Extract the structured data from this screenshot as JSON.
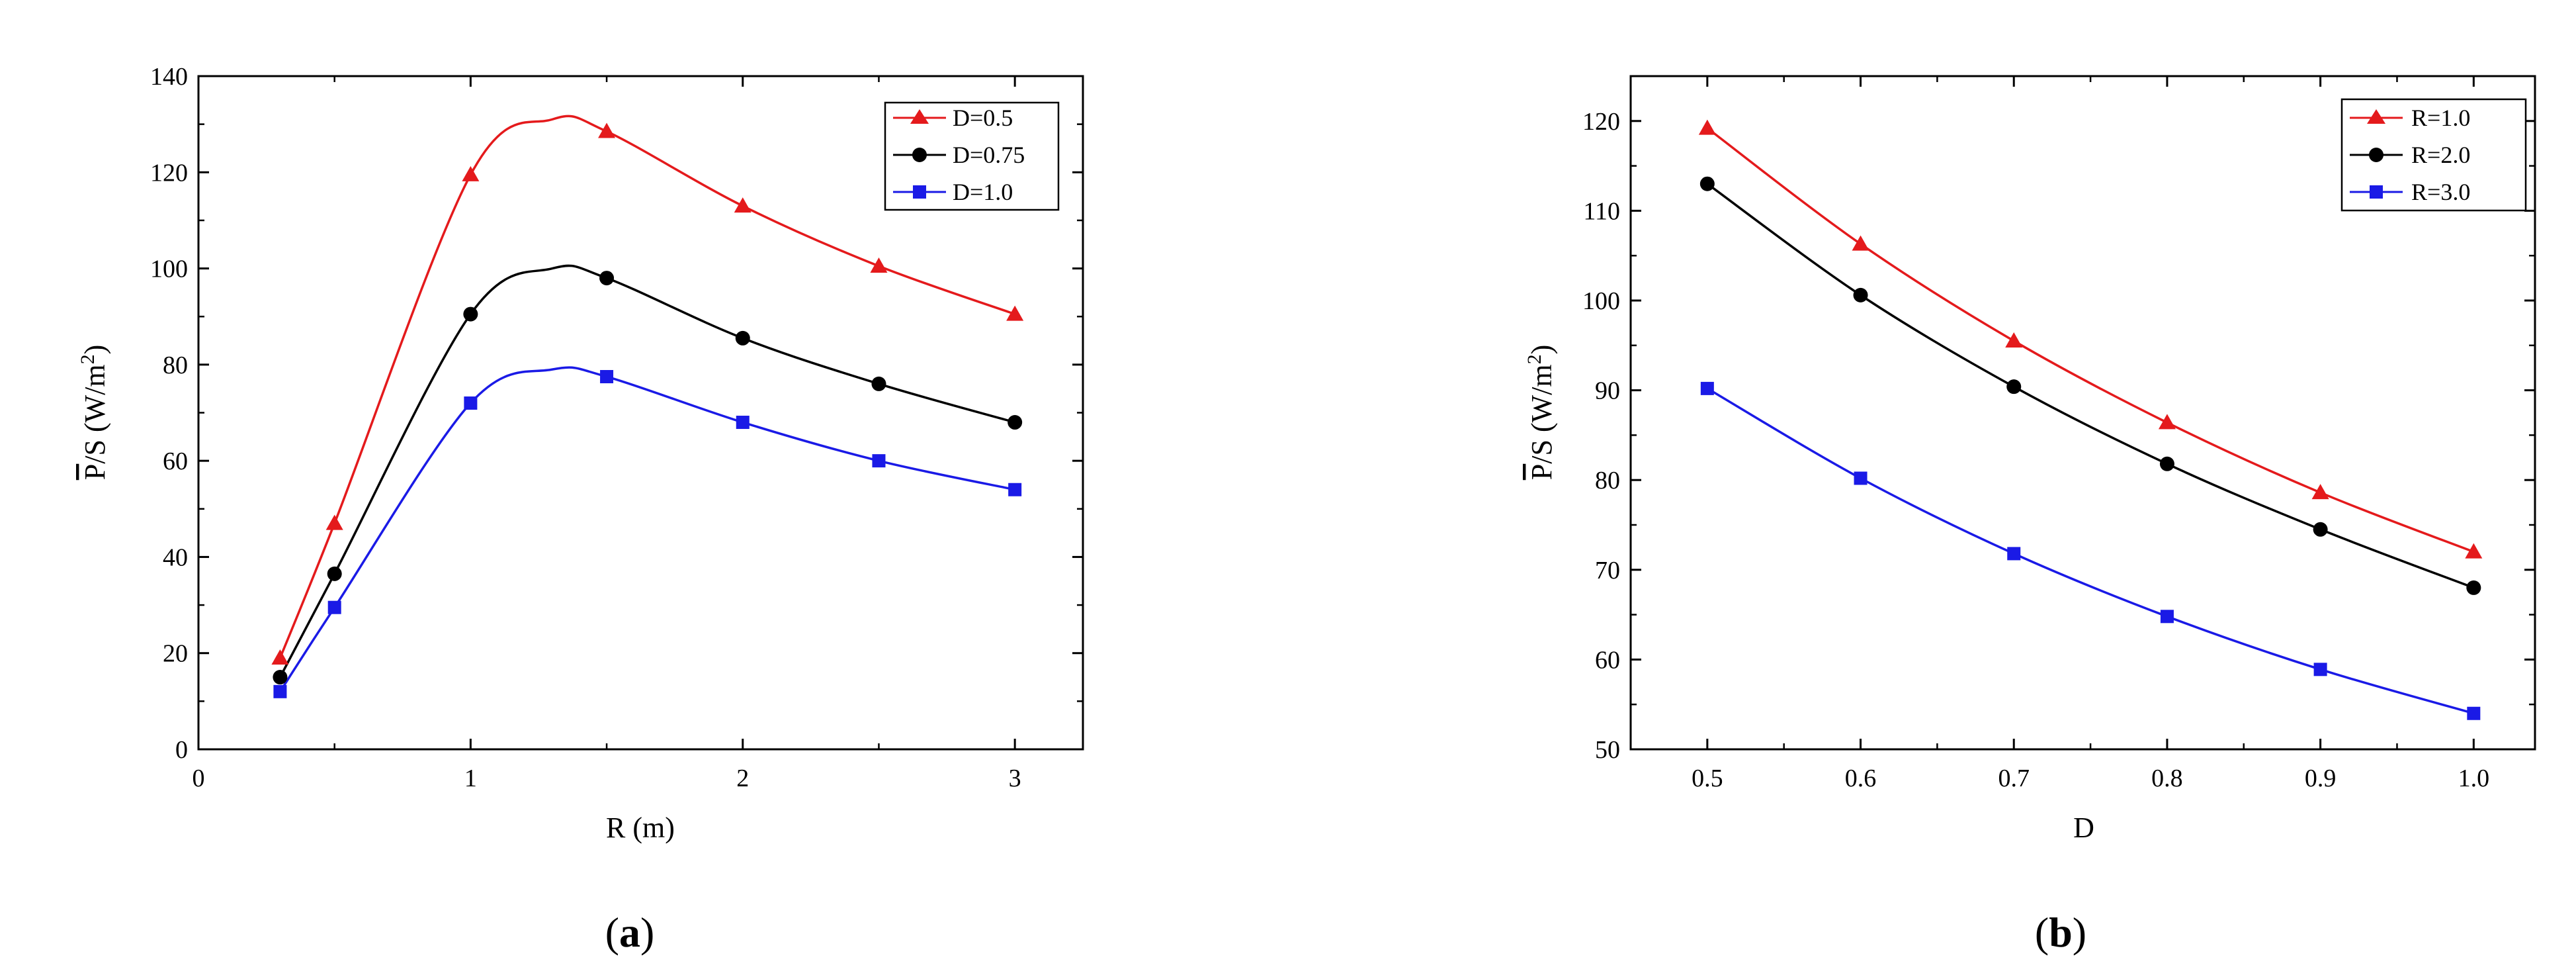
{
  "figure": {
    "panel_labels": [
      {
        "open": "(",
        "letter": "a",
        "close": ")"
      },
      {
        "open": "(",
        "letter": "b",
        "close": ")"
      }
    ]
  },
  "colors": {
    "red": "#e41a1c",
    "black": "#000000",
    "blue": "#1a1ae6"
  },
  "chart_data": [
    {
      "type": "line",
      "panel": "a",
      "xlabel": "R (m)",
      "ylabel": {
        "P": "P",
        "rest": "/S (W/m",
        "sup": "2",
        "close": ")"
      },
      "xlim": [
        0,
        3.25
      ],
      "ylim": [
        0,
        140
      ],
      "xticks": [
        0,
        1,
        2,
        3
      ],
      "yticks": [
        0,
        20,
        40,
        60,
        80,
        100,
        120,
        140
      ],
      "legend_position": "top-right",
      "series": [
        {
          "name": "D=0.5",
          "color": "#e41a1c",
          "marker": "triangle",
          "x": [
            0.3,
            0.5,
            1.0,
            1.5,
            2.0,
            2.5,
            3.0
          ],
          "y": [
            19,
            47,
            119.5,
            128.5,
            113,
            100.5,
            90.5
          ],
          "curve_peak": {
            "x": 1.3,
            "y": 131
          }
        },
        {
          "name": "D=0.75",
          "color": "#000000",
          "marker": "circle",
          "x": [
            0.3,
            0.5,
            1.0,
            1.5,
            2.0,
            2.5,
            3.0
          ],
          "y": [
            15,
            36.5,
            90.5,
            98,
            85.5,
            76,
            68
          ],
          "curve_peak": {
            "x": 1.3,
            "y": 100
          }
        },
        {
          "name": "D=1.0",
          "color": "#1a1ae6",
          "marker": "square",
          "x": [
            0.3,
            0.5,
            1.0,
            1.5,
            2.0,
            2.5,
            3.0
          ],
          "y": [
            12,
            29.5,
            72,
            77.5,
            68,
            60,
            54
          ],
          "curve_peak": {
            "x": 1.3,
            "y": 79
          }
        }
      ]
    },
    {
      "type": "line",
      "panel": "b",
      "xlabel": "D",
      "ylabel": {
        "P": "P",
        "rest": "/S (W/m",
        "sup": "2",
        "close": ")"
      },
      "xlim": [
        0.45,
        1.04
      ],
      "ylim": [
        50,
        125
      ],
      "xticks": [
        "0.5",
        "0.6",
        "0.7",
        "0.8",
        "0.9",
        "1.0"
      ],
      "yticks": [
        50,
        60,
        70,
        80,
        90,
        100,
        110,
        120
      ],
      "legend_position": "top-right",
      "series": [
        {
          "name": "R=1.0",
          "color": "#e41a1c",
          "marker": "triangle",
          "x": [
            0.5,
            0.6,
            0.7,
            0.8,
            0.9,
            1.0
          ],
          "y": [
            119.2,
            106.3,
            95.5,
            86.4,
            78.6,
            72
          ]
        },
        {
          "name": "R=2.0",
          "color": "#000000",
          "marker": "circle",
          "x": [
            0.5,
            0.6,
            0.7,
            0.8,
            0.9,
            1.0
          ],
          "y": [
            113,
            100.6,
            90.4,
            81.8,
            74.5,
            68
          ]
        },
        {
          "name": "R=3.0",
          "color": "#1a1ae6",
          "marker": "square",
          "x": [
            0.5,
            0.6,
            0.7,
            0.8,
            0.9,
            1.0
          ],
          "y": [
            90.2,
            80.2,
            71.8,
            64.8,
            58.9,
            54
          ]
        }
      ]
    }
  ]
}
